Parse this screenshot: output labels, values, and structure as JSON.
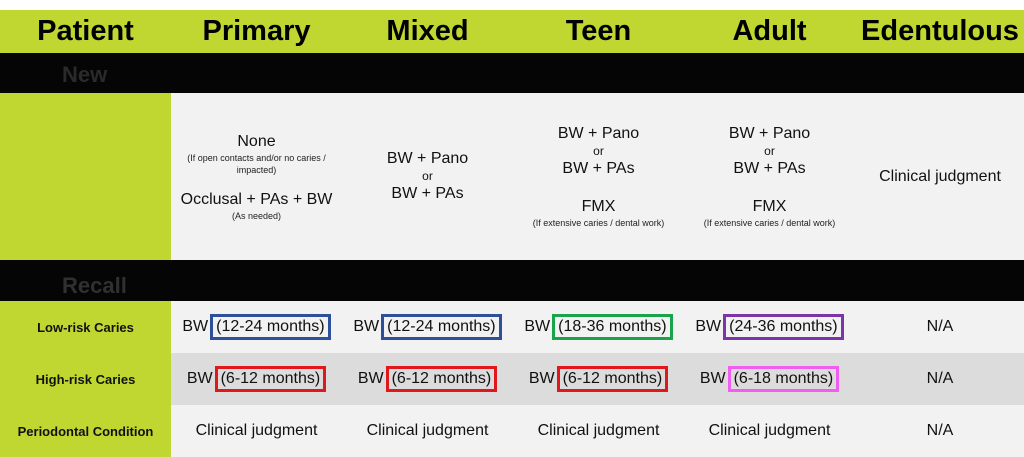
{
  "header": {
    "patient": "Patient",
    "columns": [
      "Primary",
      "Mixed",
      "Teen",
      "Adult",
      "Edentulous"
    ]
  },
  "sections": {
    "new": "New",
    "recall": "Recall"
  },
  "new_patient": {
    "primary": {
      "line1": "None",
      "note1": "(If open contacts and/or no caries / impacted)",
      "line2": "Occlusal + PAs + BW",
      "note2": "(As needed)"
    },
    "mixed": {
      "line1": "BW + Pano",
      "or": "or",
      "line2": "BW + PAs"
    },
    "teen": {
      "line1": "BW + Pano",
      "or": "or",
      "line2": "BW + PAs",
      "line3": "FMX",
      "note": "(If extensive caries / dental work)"
    },
    "adult": {
      "line1": "BW + Pano",
      "or": "or",
      "line2": "BW + PAs",
      "line3": "FMX",
      "note": "(If extensive caries / dental work)"
    },
    "edentulous": "Clinical judgment"
  },
  "recall": {
    "low_risk": {
      "label": "Low-risk Caries",
      "bw": "BW",
      "primary": "(12-24 months)",
      "mixed": "(12-24 months)",
      "teen": "(18-36 months)",
      "adult": "(24-36 months)",
      "edentulous": "N/A"
    },
    "high_risk": {
      "label": "High-risk Caries",
      "bw": "BW",
      "primary": "(6-12 months)",
      "mixed": "(6-12 months)",
      "teen": "(6-12 months)",
      "adult": "(6-18 months)",
      "edentulous": "N/A"
    },
    "periodontal": {
      "label": "Periodontal Condition",
      "primary": "Clinical judgment",
      "mixed": "Clinical judgment",
      "teen": "Clinical judgment",
      "adult": "Clinical judgment",
      "edentulous": "N/A"
    }
  },
  "colors": {
    "header_bg": "#bfd730",
    "band_bg": "#050505",
    "box_blue": "#2e4f9a",
    "box_red": "#e0181b",
    "box_green": "#19a34a",
    "box_purple": "#7b35a8",
    "box_pink": "#f25cf0"
  }
}
